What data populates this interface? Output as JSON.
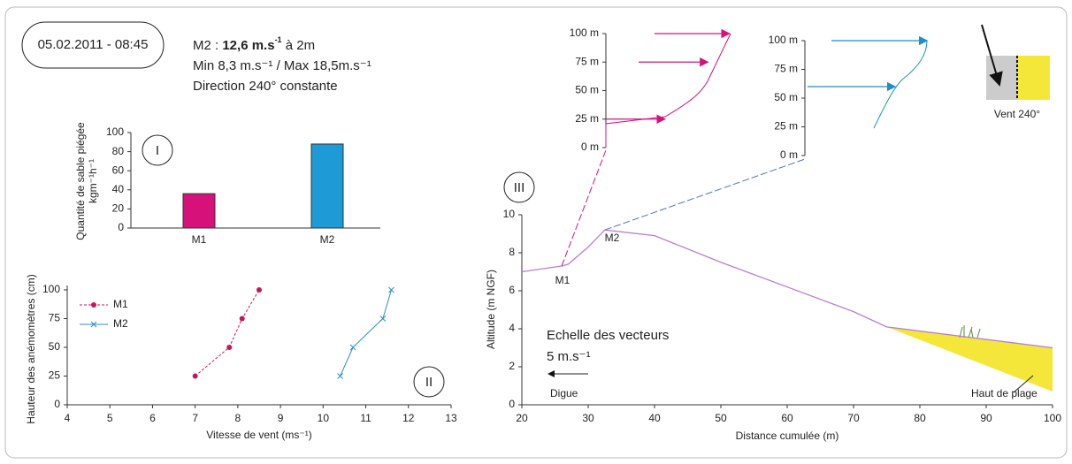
{
  "header": {
    "date": "05.02.2011 - 08:45",
    "line1_label": "M2 : ",
    "line1_value": "12,6 m.s",
    "line1_sup": "-1",
    "line1_end": " à 2m",
    "line2": "Min 8,3 m.s⁻¹ / Max 18,5m.s⁻¹",
    "line3": "Direction 240° constante"
  },
  "wind_icon": {
    "label": "Vent 240°"
  },
  "chart_data": [
    {
      "type": "bar",
      "panel": "I",
      "ylabel": [
        "Quantité de sable piégée",
        "kgm⁻¹h⁻¹"
      ],
      "categories": [
        "M1",
        "M2"
      ],
      "values": [
        36,
        88
      ],
      "colors": [
        "#d6127a",
        "#1e9bd7"
      ],
      "ylim": [
        0,
        100
      ],
      "yticks": [
        0,
        20,
        40,
        60,
        80,
        100
      ]
    },
    {
      "type": "line",
      "panel": "II",
      "xlabel": "Vitesse de vent (ms⁻¹)",
      "ylabel": "Hauteur des anémomètres (cm)",
      "legend": "upper left",
      "series": [
        {
          "name": "M1",
          "color": "#c2185b",
          "x": [
            7,
            7.8,
            8.1,
            8.5
          ],
          "values": [
            25,
            50,
            75,
            100
          ]
        },
        {
          "name": "M2",
          "color": "#2a8fc4",
          "x": [
            10.4,
            10.7,
            11.4,
            11.6
          ],
          "values": [
            25,
            50,
            75,
            100
          ]
        }
      ],
      "xlim": [
        4,
        13
      ],
      "xticks": [
        4,
        5,
        6,
        7,
        8,
        9,
        10,
        11,
        12,
        13
      ],
      "ylim": [
        0,
        100
      ],
      "yticks": [
        0,
        25,
        50,
        75,
        100
      ]
    },
    {
      "type": "profile",
      "panel": "III",
      "xlabel": "Distance cumulée (m)",
      "ylabel": "Altitude (m NGF)",
      "color": "#b77fd1",
      "x": [
        20,
        26,
        27,
        30,
        32.5,
        40,
        50,
        60,
        70,
        75,
        100
      ],
      "values": [
        7,
        7.3,
        7.4,
        8.3,
        9.2,
        8.9,
        7.5,
        6.2,
        4.9,
        4.1,
        3
      ],
      "xlim": [
        20,
        100
      ],
      "xticks": [
        20,
        30,
        40,
        50,
        60,
        70,
        80,
        90,
        100
      ],
      "ylim": [
        0,
        10
      ],
      "yticks": [
        0,
        2,
        4,
        6,
        8,
        10
      ],
      "annotations": [
        "M1",
        "M2",
        "Digue",
        "Haut de plage",
        "Echelle des vecteurs",
        "5 m.s⁻¹"
      ]
    },
    {
      "type": "vector",
      "color": "#d6127a",
      "ylim": [
        0,
        100
      ],
      "yticks": [
        {
          "value": 0,
          "label": "0 m"
        },
        {
          "value": 25,
          "label": "25 m"
        },
        {
          "value": 50,
          "label": "50 m"
        },
        {
          "value": 75,
          "label": "75 m"
        },
        {
          "value": 100,
          "label": "100 m"
        }
      ],
      "heights": [
        25,
        75,
        100
      ],
      "values": [
        7.4,
        8.7,
        9.4
      ]
    },
    {
      "type": "vector",
      "color": "#1e8fc8",
      "ylim": [
        0,
        100
      ],
      "yticks": [
        {
          "value": 0,
          "label": "0 m"
        },
        {
          "value": 25,
          "label": "25 m"
        },
        {
          "value": 50,
          "label": "50 m"
        },
        {
          "value": 75,
          "label": "75 m"
        },
        {
          "value": 100,
          "label": "100 m"
        }
      ],
      "heights": [
        60,
        100
      ],
      "values": [
        11,
        12
      ]
    }
  ]
}
